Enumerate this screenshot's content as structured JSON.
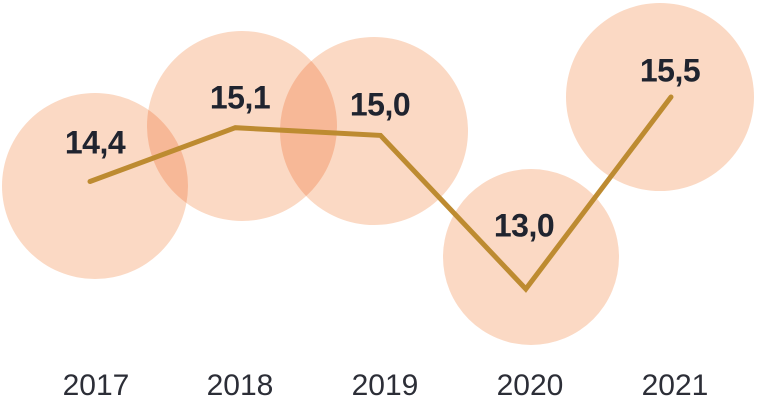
{
  "chart_data": {
    "type": "line",
    "title": "",
    "xlabel": "",
    "ylabel": "",
    "categories": [
      "2017",
      "2018",
      "2019",
      "2020",
      "2021"
    ],
    "values": [
      14.4,
      15.1,
      15.0,
      13.0,
      15.5
    ],
    "value_labels": [
      "14,4",
      "15,1",
      "15,0",
      "13,0",
      "15,5"
    ],
    "decimal_separator": ",",
    "ylim": [
      13.0,
      15.5
    ],
    "grid": false,
    "legend": false,
    "axes_visible": false,
    "marker_style": "large-translucent-bubbles",
    "colors": {
      "bubble": "#FBD9C4",
      "bubble_overlap": "#F7BA9B",
      "line": "#BD8B31",
      "value_text": "#20242F",
      "axis_text": "#2C2E37",
      "background": "#FFFFFF"
    }
  }
}
